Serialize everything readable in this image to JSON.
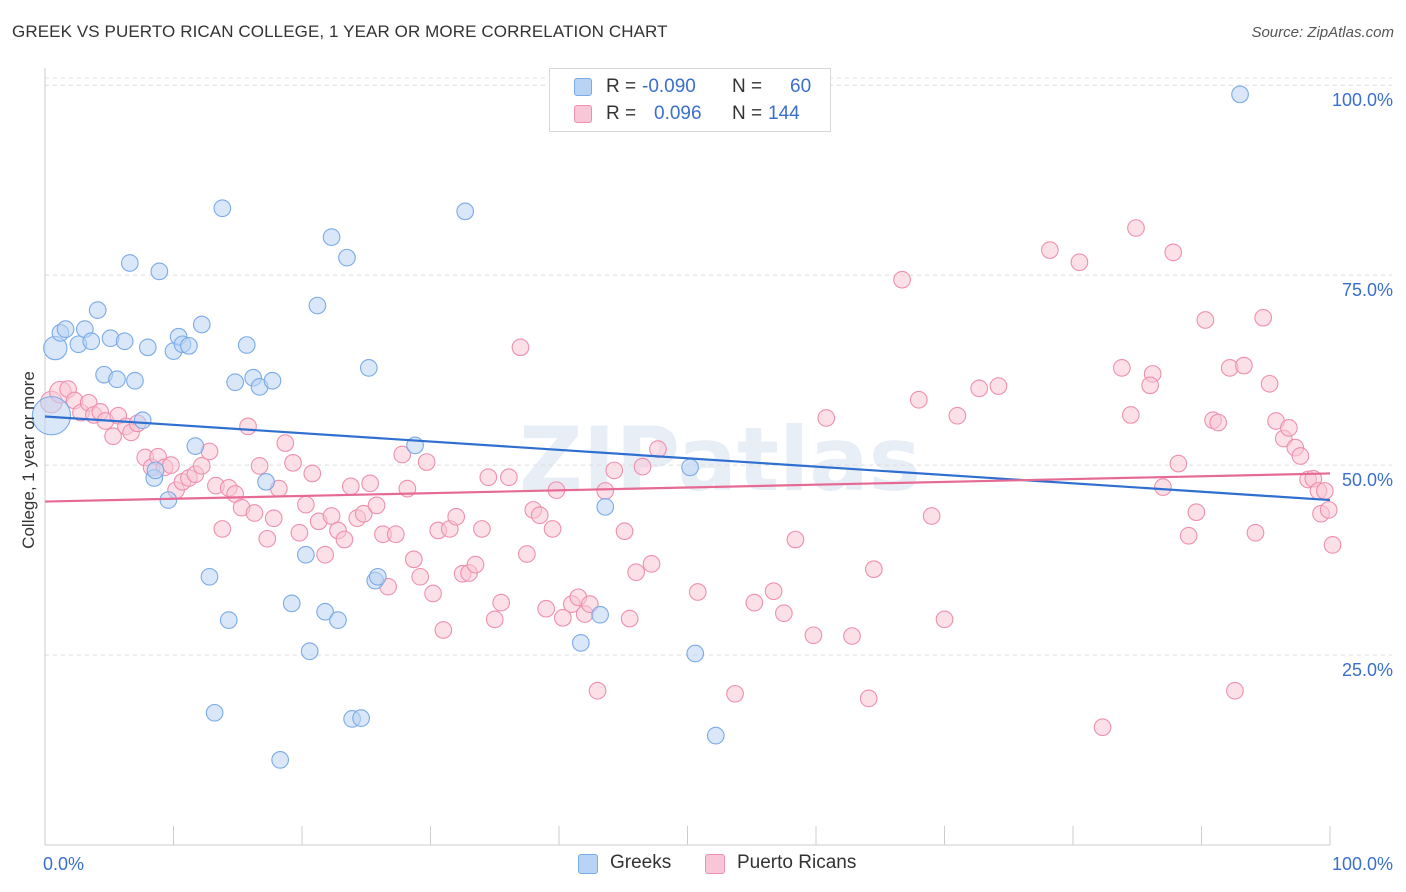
{
  "title": "GREEK VS PUERTO RICAN COLLEGE, 1 YEAR OR MORE CORRELATION CHART",
  "source": "Source: ZipAtlas.com",
  "watermark": "ZIPatlas",
  "legend": {
    "rows": [
      {
        "r_label": "R =",
        "r_value": "-0.090",
        "n_label": "N =",
        "n_value": "60",
        "color": "#7aaae8",
        "fill": "#b9d3f4"
      },
      {
        "r_label": "R =",
        "r_value": "0.096",
        "n_label": "N =",
        "n_value": "144",
        "color": "#ef8fae",
        "fill": "#f8c6d6"
      }
    ]
  },
  "bottom_legend": [
    {
      "label": "Greeks",
      "color": "#7aaae8",
      "fill": "#b9d3f4"
    },
    {
      "label": "Puerto Ricans",
      "color": "#ef8fae",
      "fill": "#f8c6d6"
    }
  ],
  "chart_data": {
    "type": "scatter",
    "title": "GREEK VS PUERTO RICAN COLLEGE, 1 YEAR OR MORE CORRELATION CHART",
    "xlabel": "",
    "ylabel": "College, 1 year or more",
    "xlim": [
      0,
      100
    ],
    "ylim": [
      0,
      102
    ],
    "x_tick_labels": [
      {
        "value": 0,
        "label": "0.0%"
      },
      {
        "value": 100,
        "label": "100.0%"
      }
    ],
    "y_tick_labels": [
      {
        "value": 25,
        "label": "25.0%"
      },
      {
        "value": 50,
        "label": "50.0%"
      },
      {
        "value": 75,
        "label": "75.0%"
      },
      {
        "value": 100,
        "label": "100.0%"
      }
    ],
    "grid": "horizontal-dashed",
    "legend_position": "top-center",
    "series": [
      {
        "name": "Greeks",
        "color": "#7aaae8",
        "fill": "#b9d3f4",
        "trend": {
          "x": [
            0,
            100
          ],
          "y": [
            56.4,
            45.4
          ],
          "color": "#2f6fcf"
        },
        "points": [
          [
            0.5,
            56.5,
            2.3
          ],
          [
            0.8,
            65.4,
            1.4
          ],
          [
            1.2,
            67.4,
            1.0
          ],
          [
            1.6,
            67.9,
            1.0
          ],
          [
            2.6,
            65.9,
            1.0
          ],
          [
            3.1,
            67.9,
            1.0
          ],
          [
            3.6,
            66.3,
            1.0
          ],
          [
            4.1,
            70.4,
            1.0
          ],
          [
            4.6,
            61.9,
            1.0
          ],
          [
            5.1,
            66.7,
            1.0
          ],
          [
            5.6,
            61.3,
            1.0
          ],
          [
            6.2,
            66.3,
            1.0
          ],
          [
            6.6,
            76.6,
            1.0
          ],
          [
            7.0,
            61.1,
            1.0
          ],
          [
            7.6,
            55.9,
            1.0
          ],
          [
            8.0,
            65.5,
            1.0
          ],
          [
            8.5,
            48.3,
            1.0
          ],
          [
            8.6,
            49.3,
            1.0
          ],
          [
            8.9,
            75.5,
            1.0
          ],
          [
            9.6,
            45.4,
            1.0
          ],
          [
            10.0,
            65.0,
            1.0
          ],
          [
            10.4,
            66.9,
            1.0
          ],
          [
            10.7,
            65.9,
            1.0
          ],
          [
            11.2,
            65.7,
            1.0
          ],
          [
            11.7,
            52.5,
            1.0
          ],
          [
            12.2,
            68.5,
            1.0
          ],
          [
            12.8,
            35.3,
            1.0
          ],
          [
            13.2,
            17.4,
            1.0
          ],
          [
            13.8,
            83.8,
            1.0
          ],
          [
            14.3,
            29.6,
            1.0
          ],
          [
            14.8,
            60.9,
            1.0
          ],
          [
            15.7,
            65.8,
            1.0
          ],
          [
            16.2,
            61.5,
            1.0
          ],
          [
            16.7,
            60.3,
            1.0
          ],
          [
            17.2,
            47.8,
            1.0
          ],
          [
            17.7,
            61.1,
            1.0
          ],
          [
            18.3,
            11.2,
            1.0
          ],
          [
            19.2,
            31.8,
            1.0
          ],
          [
            20.3,
            38.2,
            1.0
          ],
          [
            20.6,
            25.5,
            1.0
          ],
          [
            21.2,
            71.0,
            1.0
          ],
          [
            21.8,
            30.7,
            1.0
          ],
          [
            22.3,
            80.0,
            1.0
          ],
          [
            22.8,
            29.6,
            1.0
          ],
          [
            23.5,
            77.3,
            1.0
          ],
          [
            23.9,
            16.6,
            1.0
          ],
          [
            24.6,
            16.7,
            1.0
          ],
          [
            25.2,
            62.8,
            1.0
          ],
          [
            25.7,
            34.8,
            1.0
          ],
          [
            25.9,
            35.3,
            1.0
          ],
          [
            28.8,
            52.6,
            1.0
          ],
          [
            32.7,
            83.4,
            1.0
          ],
          [
            41.7,
            26.6,
            1.0
          ],
          [
            43.2,
            30.3,
            1.0
          ],
          [
            43.6,
            44.5,
            1.0
          ],
          [
            50.2,
            49.7,
            1.0
          ],
          [
            50.6,
            25.2,
            1.0
          ],
          [
            52.2,
            14.4,
            1.0
          ],
          [
            56.4,
            100.3,
            1.0
          ],
          [
            93.0,
            98.8,
            1.0
          ]
        ]
      },
      {
        "name": "Puerto Ricans",
        "color": "#ef8fae",
        "fill": "#f8c6d6",
        "trend": {
          "x": [
            0,
            100
          ],
          "y": [
            45.2,
            48.9
          ],
          "color": "#e56a94"
        },
        "points": [
          [
            0.5,
            58.3,
            1.3
          ],
          [
            1.2,
            59.6,
            1.3
          ],
          [
            1.8,
            60.0,
            1.0
          ],
          [
            2.3,
            58.5,
            1.0
          ],
          [
            2.8,
            56.9,
            1.0
          ],
          [
            3.4,
            58.2,
            1.0
          ],
          [
            3.8,
            56.6,
            1.0
          ],
          [
            4.3,
            57.0,
            1.0
          ],
          [
            4.7,
            55.8,
            1.0
          ],
          [
            5.3,
            53.8,
            1.0
          ],
          [
            5.7,
            56.5,
            1.0
          ],
          [
            6.3,
            55.1,
            1.0
          ],
          [
            6.7,
            54.3,
            1.0
          ],
          [
            7.2,
            55.5,
            1.0
          ],
          [
            7.8,
            51.0,
            1.0
          ],
          [
            8.3,
            49.7,
            1.0
          ],
          [
            8.8,
            51.1,
            1.0
          ],
          [
            9.3,
            49.7,
            1.0
          ],
          [
            9.8,
            50.0,
            1.0
          ],
          [
            10.2,
            46.7,
            1.0
          ],
          [
            10.7,
            47.8,
            1.0
          ],
          [
            11.2,
            48.3,
            1.0
          ],
          [
            11.7,
            48.8,
            1.0
          ],
          [
            12.2,
            49.9,
            1.0
          ],
          [
            12.8,
            51.8,
            1.0
          ],
          [
            13.3,
            47.3,
            1.0
          ],
          [
            13.8,
            41.6,
            1.0
          ],
          [
            14.3,
            47.0,
            1.0
          ],
          [
            14.8,
            46.2,
            1.0
          ],
          [
            15.3,
            44.4,
            1.0
          ],
          [
            15.8,
            55.1,
            1.0
          ],
          [
            16.3,
            43.7,
            1.0
          ],
          [
            16.7,
            49.9,
            1.0
          ],
          [
            17.3,
            40.3,
            1.0
          ],
          [
            17.8,
            43.0,
            1.0
          ],
          [
            18.2,
            46.9,
            1.0
          ],
          [
            18.7,
            52.9,
            1.0
          ],
          [
            19.3,
            50.3,
            1.0
          ],
          [
            19.8,
            41.1,
            1.0
          ],
          [
            20.3,
            44.8,
            1.0
          ],
          [
            20.8,
            48.9,
            1.0
          ],
          [
            21.3,
            42.6,
            1.0
          ],
          [
            21.8,
            38.2,
            1.0
          ],
          [
            22.3,
            43.3,
            1.0
          ],
          [
            22.8,
            41.4,
            1.0
          ],
          [
            23.3,
            40.2,
            1.0
          ],
          [
            23.8,
            47.2,
            1.0
          ],
          [
            24.3,
            43.0,
            1.0
          ],
          [
            24.8,
            43.6,
            1.0
          ],
          [
            25.3,
            47.6,
            1.0
          ],
          [
            25.8,
            44.7,
            1.0
          ],
          [
            26.3,
            40.9,
            1.0
          ],
          [
            26.7,
            34.0,
            1.0
          ],
          [
            27.3,
            40.9,
            1.0
          ],
          [
            27.8,
            51.4,
            1.0
          ],
          [
            28.2,
            46.9,
            1.0
          ],
          [
            28.7,
            37.6,
            1.0
          ],
          [
            29.2,
            35.3,
            1.0
          ],
          [
            29.7,
            50.4,
            1.0
          ],
          [
            30.2,
            33.1,
            1.0
          ],
          [
            30.6,
            41.4,
            1.0
          ],
          [
            31.0,
            28.3,
            1.0
          ],
          [
            31.5,
            41.6,
            1.0
          ],
          [
            32.0,
            43.2,
            1.0
          ],
          [
            32.5,
            35.7,
            1.0
          ],
          [
            33.0,
            35.8,
            1.0
          ],
          [
            33.5,
            36.9,
            1.0
          ],
          [
            34.0,
            41.6,
            1.0
          ],
          [
            34.5,
            48.4,
            1.0
          ],
          [
            35.0,
            29.7,
            1.0
          ],
          [
            35.5,
            31.9,
            1.0
          ],
          [
            36.1,
            48.4,
            1.0
          ],
          [
            37.0,
            65.5,
            1.0
          ],
          [
            37.5,
            38.3,
            1.0
          ],
          [
            38.0,
            44.1,
            1.0
          ],
          [
            38.5,
            43.4,
            1.0
          ],
          [
            39.0,
            31.1,
            1.0
          ],
          [
            39.5,
            41.6,
            1.0
          ],
          [
            39.8,
            46.7,
            1.0
          ],
          [
            40.3,
            29.9,
            1.0
          ],
          [
            41.0,
            31.7,
            1.0
          ],
          [
            41.5,
            32.6,
            1.0
          ],
          [
            42.0,
            30.4,
            1.0
          ],
          [
            42.4,
            31.7,
            1.0
          ],
          [
            43.0,
            20.3,
            1.0
          ],
          [
            43.6,
            46.6,
            1.0
          ],
          [
            44.3,
            49.3,
            1.0
          ],
          [
            45.1,
            41.3,
            1.0
          ],
          [
            45.5,
            29.8,
            1.0
          ],
          [
            46.0,
            35.9,
            1.0
          ],
          [
            46.5,
            49.8,
            1.0
          ],
          [
            47.2,
            37.0,
            1.0
          ],
          [
            47.7,
            52.1,
            1.0
          ],
          [
            50.8,
            33.3,
            1.0
          ],
          [
            53.7,
            19.9,
            1.0
          ],
          [
            55.2,
            31.9,
            1.0
          ],
          [
            56.7,
            33.4,
            1.0
          ],
          [
            57.5,
            30.5,
            1.0
          ],
          [
            58.4,
            40.2,
            1.0
          ],
          [
            59.8,
            27.6,
            1.0
          ],
          [
            60.8,
            56.2,
            1.0
          ],
          [
            62.8,
            27.5,
            1.0
          ],
          [
            64.1,
            19.3,
            1.0
          ],
          [
            64.5,
            36.3,
            1.0
          ],
          [
            66.7,
            74.4,
            1.0
          ],
          [
            68.0,
            58.6,
            1.0
          ],
          [
            69.0,
            43.3,
            1.0
          ],
          [
            70.0,
            29.7,
            1.0
          ],
          [
            71.0,
            56.5,
            1.0
          ],
          [
            72.7,
            60.1,
            1.0
          ],
          [
            74.2,
            60.4,
            1.0
          ],
          [
            78.2,
            78.3,
            1.0
          ],
          [
            80.5,
            76.7,
            1.0
          ],
          [
            82.3,
            15.5,
            1.0
          ],
          [
            83.8,
            62.8,
            1.0
          ],
          [
            84.5,
            56.6,
            1.0
          ],
          [
            84.9,
            81.2,
            1.0
          ],
          [
            86.2,
            62.0,
            1.0
          ],
          [
            86.0,
            60.5,
            1.0
          ],
          [
            87.0,
            47.1,
            1.0
          ],
          [
            87.8,
            78.0,
            1.0
          ],
          [
            88.2,
            50.2,
            1.0
          ],
          [
            89.0,
            40.7,
            1.0
          ],
          [
            90.3,
            69.1,
            1.0
          ],
          [
            89.6,
            43.8,
            1.0
          ],
          [
            90.9,
            55.9,
            1.0
          ],
          [
            91.3,
            55.6,
            1.0
          ],
          [
            92.2,
            62.8,
            1.0
          ],
          [
            92.6,
            20.3,
            1.0
          ],
          [
            93.3,
            63.1,
            1.0
          ],
          [
            94.2,
            41.1,
            1.0
          ],
          [
            94.8,
            69.4,
            1.0
          ],
          [
            95.3,
            60.7,
            1.0
          ],
          [
            95.8,
            55.8,
            1.0
          ],
          [
            96.4,
            53.5,
            1.0
          ],
          [
            96.8,
            54.9,
            1.0
          ],
          [
            97.3,
            52.3,
            1.0
          ],
          [
            97.7,
            51.2,
            1.0
          ],
          [
            98.3,
            48.1,
            1.0
          ],
          [
            98.7,
            48.2,
            1.0
          ],
          [
            99.1,
            46.6,
            1.0
          ],
          [
            99.6,
            46.6,
            1.0
          ],
          [
            99.3,
            43.6,
            1.0
          ],
          [
            99.9,
            44.1,
            1.0
          ],
          [
            100.2,
            39.5,
            1.0
          ]
        ]
      }
    ]
  }
}
